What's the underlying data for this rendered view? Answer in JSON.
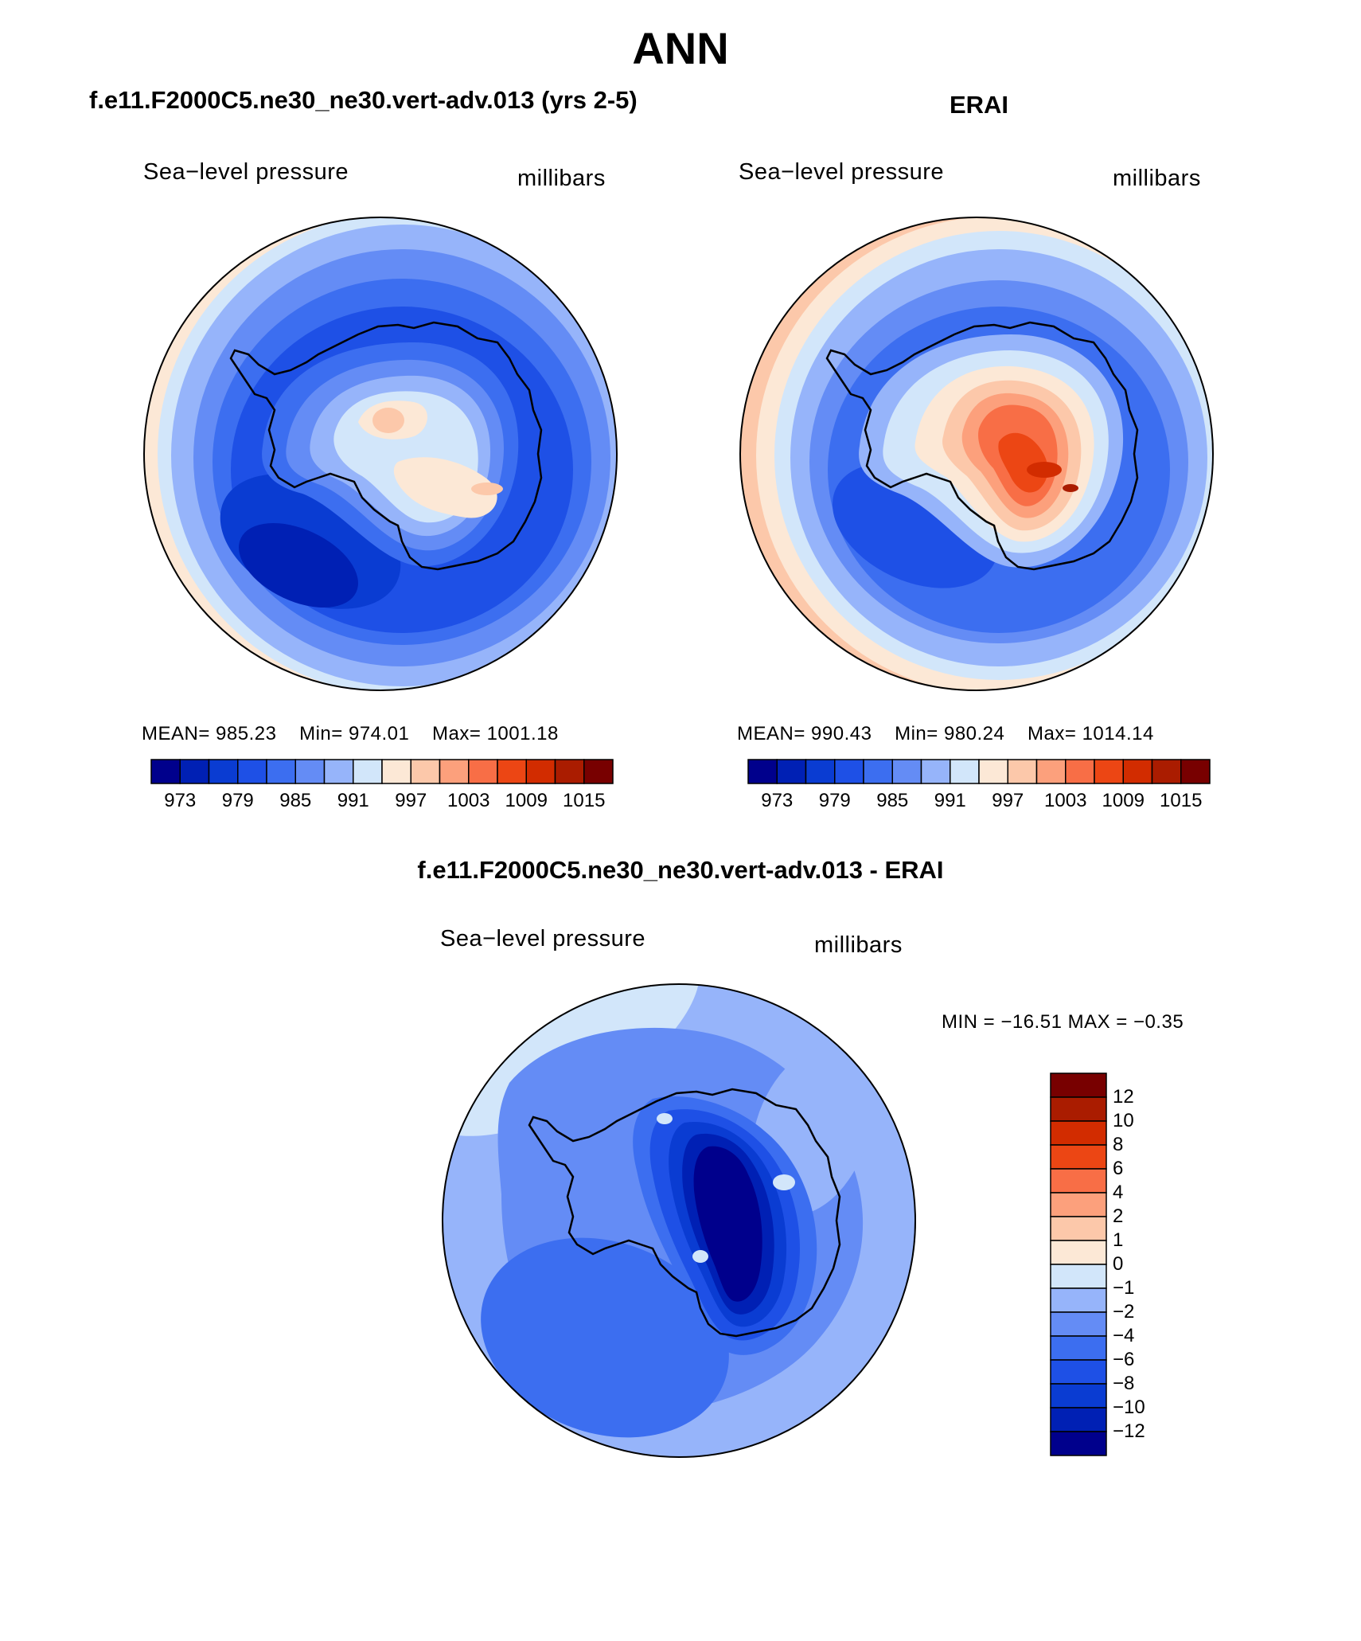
{
  "page_title": "ANN",
  "panels": [
    {
      "title": "f.e11.F2000C5.ne30_ne30.vert-adv.013 (yrs 2-5)",
      "variable": "Sea−level pressure",
      "units": "millibars",
      "mean_label": "MEAN=",
      "mean": "985.23",
      "min_label": "Min=",
      "min": "974.01",
      "max_label": "Max=",
      "max": "1001.18"
    },
    {
      "title": "ERAI",
      "variable": "Sea−level pressure",
      "units": "millibars",
      "mean_label": "MEAN=",
      "mean": "990.43",
      "min_label": "Min=",
      "min": "980.24",
      "max_label": "Max=",
      "max": "1014.14"
    }
  ],
  "difference_panel": {
    "title": "f.e11.F2000C5.ne30_ne30.vert-adv.013 - ERAI",
    "variable": "Sea−level pressure",
    "units": "millibars",
    "range_text": "MIN = −16.51  MAX =   −0.35"
  },
  "chart_data": [
    {
      "type": "polar-contour-map",
      "region": "Antarctica / Southern Ocean",
      "title": "f.e11.F2000C5.ne30_ne30.vert-adv.013 (yrs 2-5)",
      "variable": "Sea-level pressure",
      "units": "millibars",
      "mean": 985.23,
      "min": 974.01,
      "max": 1001.18,
      "colorbar": {
        "colors": [
          "#00008c",
          "#0020b4",
          "#0a3cd2",
          "#1e50e6",
          "#3c6ef0",
          "#648cf5",
          "#96b4fa",
          "#d2e6fa",
          "#fce8d6",
          "#fcc8aa",
          "#fca07c",
          "#f86e46",
          "#ec4614",
          "#d22c00",
          "#aa1c00",
          "#780000"
        ],
        "tick_labels": [
          "973",
          "979",
          "985",
          "991",
          "997",
          "1003",
          "1009",
          "1015"
        ],
        "tick_values": [
          973,
          979,
          985,
          991,
          997,
          1003,
          1009,
          1015
        ]
      }
    },
    {
      "type": "polar-contour-map",
      "region": "Antarctica / Southern Ocean",
      "title": "ERAI",
      "variable": "Sea-level pressure",
      "units": "millibars",
      "mean": 990.43,
      "min": 980.24,
      "max": 1014.14,
      "colorbar": {
        "colors": [
          "#00008c",
          "#0020b4",
          "#0a3cd2",
          "#1e50e6",
          "#3c6ef0",
          "#648cf5",
          "#96b4fa",
          "#d2e6fa",
          "#fce8d6",
          "#fcc8aa",
          "#fca07c",
          "#f86e46",
          "#ec4614",
          "#d22c00",
          "#aa1c00",
          "#780000"
        ],
        "tick_labels": [
          "973",
          "979",
          "985",
          "991",
          "997",
          "1003",
          "1009",
          "1015"
        ],
        "tick_values": [
          973,
          979,
          985,
          991,
          997,
          1003,
          1009,
          1015
        ]
      }
    },
    {
      "type": "polar-contour-map",
      "region": "Antarctica / Southern Ocean",
      "title": "f.e11.F2000C5.ne30_ne30.vert-adv.013 - ERAI",
      "variable": "Sea-level pressure difference",
      "units": "millibars",
      "min": -16.51,
      "max": -0.35,
      "colorbar": {
        "colors_top_to_bottom": [
          "#780000",
          "#aa1c00",
          "#d22c00",
          "#ec4614",
          "#f86e46",
          "#fca07c",
          "#fcc8aa",
          "#fce8d6",
          "#d2e6fa",
          "#96b4fa",
          "#648cf5",
          "#3c6ef0",
          "#1e50e6",
          "#0a3cd2",
          "#0020b4",
          "#00008c"
        ],
        "tick_labels": [
          "12",
          "10",
          "8",
          "6",
          "4",
          "2",
          "1",
          "0",
          "−1",
          "−2",
          "−4",
          "−6",
          "−8",
          "−10",
          "−12"
        ],
        "tick_values": [
          12,
          10,
          8,
          6,
          4,
          2,
          1,
          0,
          -1,
          -2,
          -4,
          -6,
          -8,
          -10,
          -12
        ]
      }
    }
  ],
  "colors": {
    "dark_blue": "#00008c",
    "mid_blue": "#1e50e6",
    "light_blue": "#96b4fa",
    "pale_blue": "#d2e6fa",
    "pale_orange": "#fce8d6",
    "orange": "#f86e46",
    "dark_red": "#780000"
  }
}
